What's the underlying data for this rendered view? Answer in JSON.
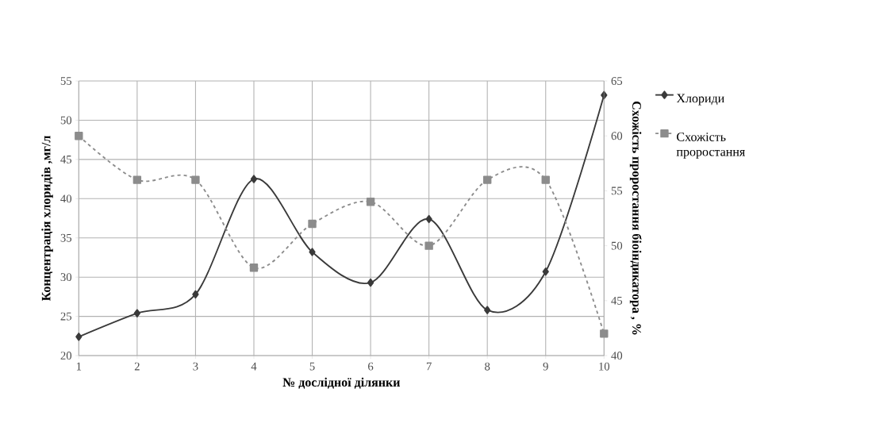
{
  "chart_data": {
    "type": "line",
    "xlabel": "№ дослідної ділянки",
    "ylabel": "Концентрація хлоридів ,мг/л",
    "y2label": "Схожість проростання біоіндикатора , %",
    "categories": [
      "1",
      "2",
      "3",
      "4",
      "5",
      "6",
      "7",
      "8",
      "9",
      "10"
    ],
    "series": [
      {
        "name": "Хлориди",
        "color": "#3a3a3a",
        "marker": "diamond",
        "line_style": "solid",
        "values": [
          22.4,
          25.4,
          27.8,
          42.5,
          33.2,
          29.3,
          37.4,
          25.8,
          30.7,
          53.2
        ]
      },
      {
        "name": "Схожість проростання",
        "color": "#8c8c8c",
        "marker": "square",
        "line_style": "dashed",
        "axis": "y2",
        "values": [
          60,
          56,
          56,
          48,
          52,
          54,
          50,
          56,
          56,
          42
        ]
      }
    ],
    "ylim": [
      20,
      55
    ],
    "yticks": [
      20,
      25,
      30,
      35,
      40,
      45,
      50,
      55
    ],
    "y2lim": [
      40,
      65
    ],
    "y2ticks": [
      40,
      45,
      50,
      55,
      60,
      65
    ],
    "grid": true,
    "legend": "right"
  }
}
